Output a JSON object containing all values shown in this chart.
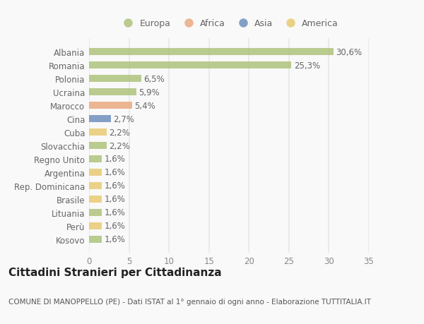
{
  "countries": [
    "Kosovo",
    "Perù",
    "Lituania",
    "Brasile",
    "Rep. Dominicana",
    "Argentina",
    "Regno Unito",
    "Slovacchia",
    "Cuba",
    "Cina",
    "Marocco",
    "Ucraina",
    "Polonia",
    "Romania",
    "Albania"
  ],
  "values": [
    1.6,
    1.6,
    1.6,
    1.6,
    1.6,
    1.6,
    1.6,
    2.2,
    2.2,
    2.7,
    5.4,
    5.9,
    6.5,
    25.3,
    30.6
  ],
  "labels": [
    "1,6%",
    "1,6%",
    "1,6%",
    "1,6%",
    "1,6%",
    "1,6%",
    "1,6%",
    "2,2%",
    "2,2%",
    "2,7%",
    "5,4%",
    "5,9%",
    "6,5%",
    "25,3%",
    "30,6%"
  ],
  "continents": [
    "Europa",
    "America",
    "Europa",
    "America",
    "America",
    "America",
    "Europa",
    "Europa",
    "America",
    "Asia",
    "Africa",
    "Europa",
    "Europa",
    "Europa",
    "Europa"
  ],
  "continent_colors": {
    "Europa": "#adc178",
    "Africa": "#e8a87c",
    "Asia": "#6b8cba",
    "America": "#e8c96e"
  },
  "legend_order": [
    "Europa",
    "Africa",
    "Asia",
    "America"
  ],
  "xlim": [
    0,
    35
  ],
  "xticks": [
    0,
    5,
    10,
    15,
    20,
    25,
    30,
    35
  ],
  "title": "Cittadini Stranieri per Cittadinanza",
  "subtitle": "COMUNE DI MANOPPELLO (PE) - Dati ISTAT al 1° gennaio di ogni anno - Elaborazione TUTTITALIA.IT",
  "background_color": "#f9f9f9",
  "grid_color": "#e8e8e8",
  "bar_alpha": 0.82,
  "title_fontsize": 11,
  "subtitle_fontsize": 7.5,
  "label_fontsize": 8.5,
  "tick_fontsize": 8.5,
  "ytick_fontsize": 8.5
}
